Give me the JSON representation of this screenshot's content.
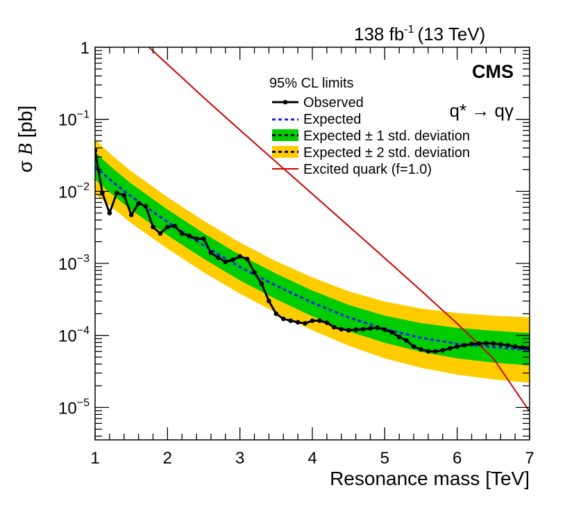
{
  "chart_data": {
    "type": "line",
    "title": "",
    "lumi_label": "138 fb",
    "lumi_exponent": "-1",
    "energy_label": "(13 TeV)",
    "experiment": "CMS",
    "process_label": "q* → qγ",
    "xlabel": "Resonance mass [TeV]",
    "ylabel_sigma": "σ",
    "ylabel_b": "B",
    "ylabel_unit": "[pb]",
    "xlim": [
      1,
      7
    ],
    "ylim_log10": [
      -5.45,
      0
    ],
    "y_scale": "log",
    "x_ticks": [
      "1",
      "2",
      "3",
      "4",
      "5",
      "6",
      "7"
    ],
    "y_ticks": [
      {
        "value": 1,
        "base": "1",
        "exp": ""
      },
      {
        "value": 0.1,
        "base": "10",
        "exp": "−1"
      },
      {
        "value": 0.01,
        "base": "10",
        "exp": "−2"
      },
      {
        "value": 0.001,
        "base": "10",
        "exp": "−3"
      },
      {
        "value": 0.0001,
        "base": "10",
        "exp": "−4"
      },
      {
        "value": 1e-05,
        "base": "10",
        "exp": "−5"
      }
    ],
    "legend": {
      "header": "95% CL limits",
      "position": "top-right",
      "entries": [
        "Observed",
        "Expected",
        "Expected ± 1 std. deviation",
        "Expected ± 2 std. deviation",
        "Excited quark (f=1.0)"
      ]
    },
    "colors": {
      "observed": "#000000",
      "expected": "#1a1aff",
      "band1": "#00cc00",
      "band2": "#ffcc00",
      "theory": "#cc0000"
    },
    "expected_band": {
      "x": [
        1.0,
        1.25,
        1.5,
        2.0,
        2.5,
        3.0,
        3.5,
        4.0,
        4.5,
        5.0,
        5.5,
        6.0,
        6.5,
        7.0
      ],
      "exp": [
        0.022,
        0.0133,
        0.0085,
        0.00375,
        0.00177,
        0.00089,
        0.00049,
        0.000285,
        0.000178,
        0.000123,
        9.25e-05,
        7.65e-05,
        6.85e-05,
        6.25e-05
      ],
      "p1": [
        0.035,
        0.0205,
        0.0128,
        0.0056,
        0.00262,
        0.00131,
        0.00072,
        0.00042,
        0.000265,
        0.000188,
        0.000148,
        0.000127,
        0.000116,
        0.000108
      ],
      "m1": [
        0.0145,
        0.0088,
        0.0055,
        0.00245,
        0.00116,
        0.00058,
        0.000318,
        0.000184,
        0.000114,
        7.9e-05,
        5.9e-05,
        4.8e-05,
        4.2e-05,
        3.82e-05
      ],
      "p2": [
        0.052,
        0.0305,
        0.019,
        0.0083,
        0.0039,
        0.00195,
        0.00107,
        0.00064,
        0.00041,
        0.000295,
        0.000236,
        0.000205,
        0.000188,
        0.000178
      ],
      "m2": [
        0.0092,
        0.0058,
        0.0036,
        0.0016,
        0.00075,
        0.00038,
        0.000205,
        0.000118,
        7.2e-05,
        4.8e-05,
        3.55e-05,
        2.85e-05,
        2.45e-05,
        2.2e-05
      ]
    },
    "observed": {
      "x": [
        1.0,
        1.1,
        1.2,
        1.3,
        1.4,
        1.5,
        1.6,
        1.7,
        1.8,
        1.9,
        2.0,
        2.1,
        2.2,
        2.3,
        2.4,
        2.5,
        2.6,
        2.7,
        2.8,
        2.9,
        3.0,
        3.1,
        3.2,
        3.3,
        3.4,
        3.5,
        3.6,
        3.7,
        3.8,
        3.9,
        4.0,
        4.1,
        4.2,
        4.3,
        4.4,
        4.5,
        4.6,
        4.7,
        4.8,
        4.9,
        5.0,
        5.1,
        5.2,
        5.3,
        5.4,
        5.5,
        5.6,
        5.7,
        5.8,
        5.9,
        6.0,
        6.1,
        6.2,
        6.3,
        6.4,
        6.5,
        6.6,
        6.7,
        6.8,
        6.9,
        7.0
      ],
      "y": [
        0.037,
        0.0095,
        0.005,
        0.0095,
        0.0088,
        0.0047,
        0.0068,
        0.0062,
        0.0032,
        0.0026,
        0.0032,
        0.0033,
        0.0026,
        0.0024,
        0.0022,
        0.0022,
        0.0014,
        0.0012,
        0.00105,
        0.00112,
        0.00125,
        0.00115,
        0.00075,
        0.00052,
        0.0003,
        0.0002,
        0.00017,
        0.00016,
        0.000152,
        0.000147,
        0.00016,
        0.00016,
        0.00015,
        0.00013,
        0.000122,
        0.000118,
        0.00012,
        0.000122,
        0.000125,
        0.000128,
        0.00012,
        0.00011,
        9.5e-05,
        8.5e-05,
        7e-05,
        6.4e-05,
        6e-05,
        6e-05,
        6.2e-05,
        6.6e-05,
        7e-05,
        7.3e-05,
        7.6e-05,
        7.7e-05,
        7.8e-05,
        7.7e-05,
        7.5e-05,
        7.3e-05,
        7e-05,
        6.8e-05,
        6.5e-05
      ]
    },
    "theory": {
      "x": [
        1.7,
        2.0,
        2.5,
        3.0,
        3.5,
        4.0,
        4.5,
        5.0,
        5.5,
        6.0,
        6.5,
        7.0
      ],
      "y": [
        1.1,
        0.58,
        0.2,
        0.071,
        0.0255,
        0.0092,
        0.0033,
        0.00118,
        0.00042,
        0.000146,
        4.8e-05,
        8.8e-06
      ]
    }
  }
}
